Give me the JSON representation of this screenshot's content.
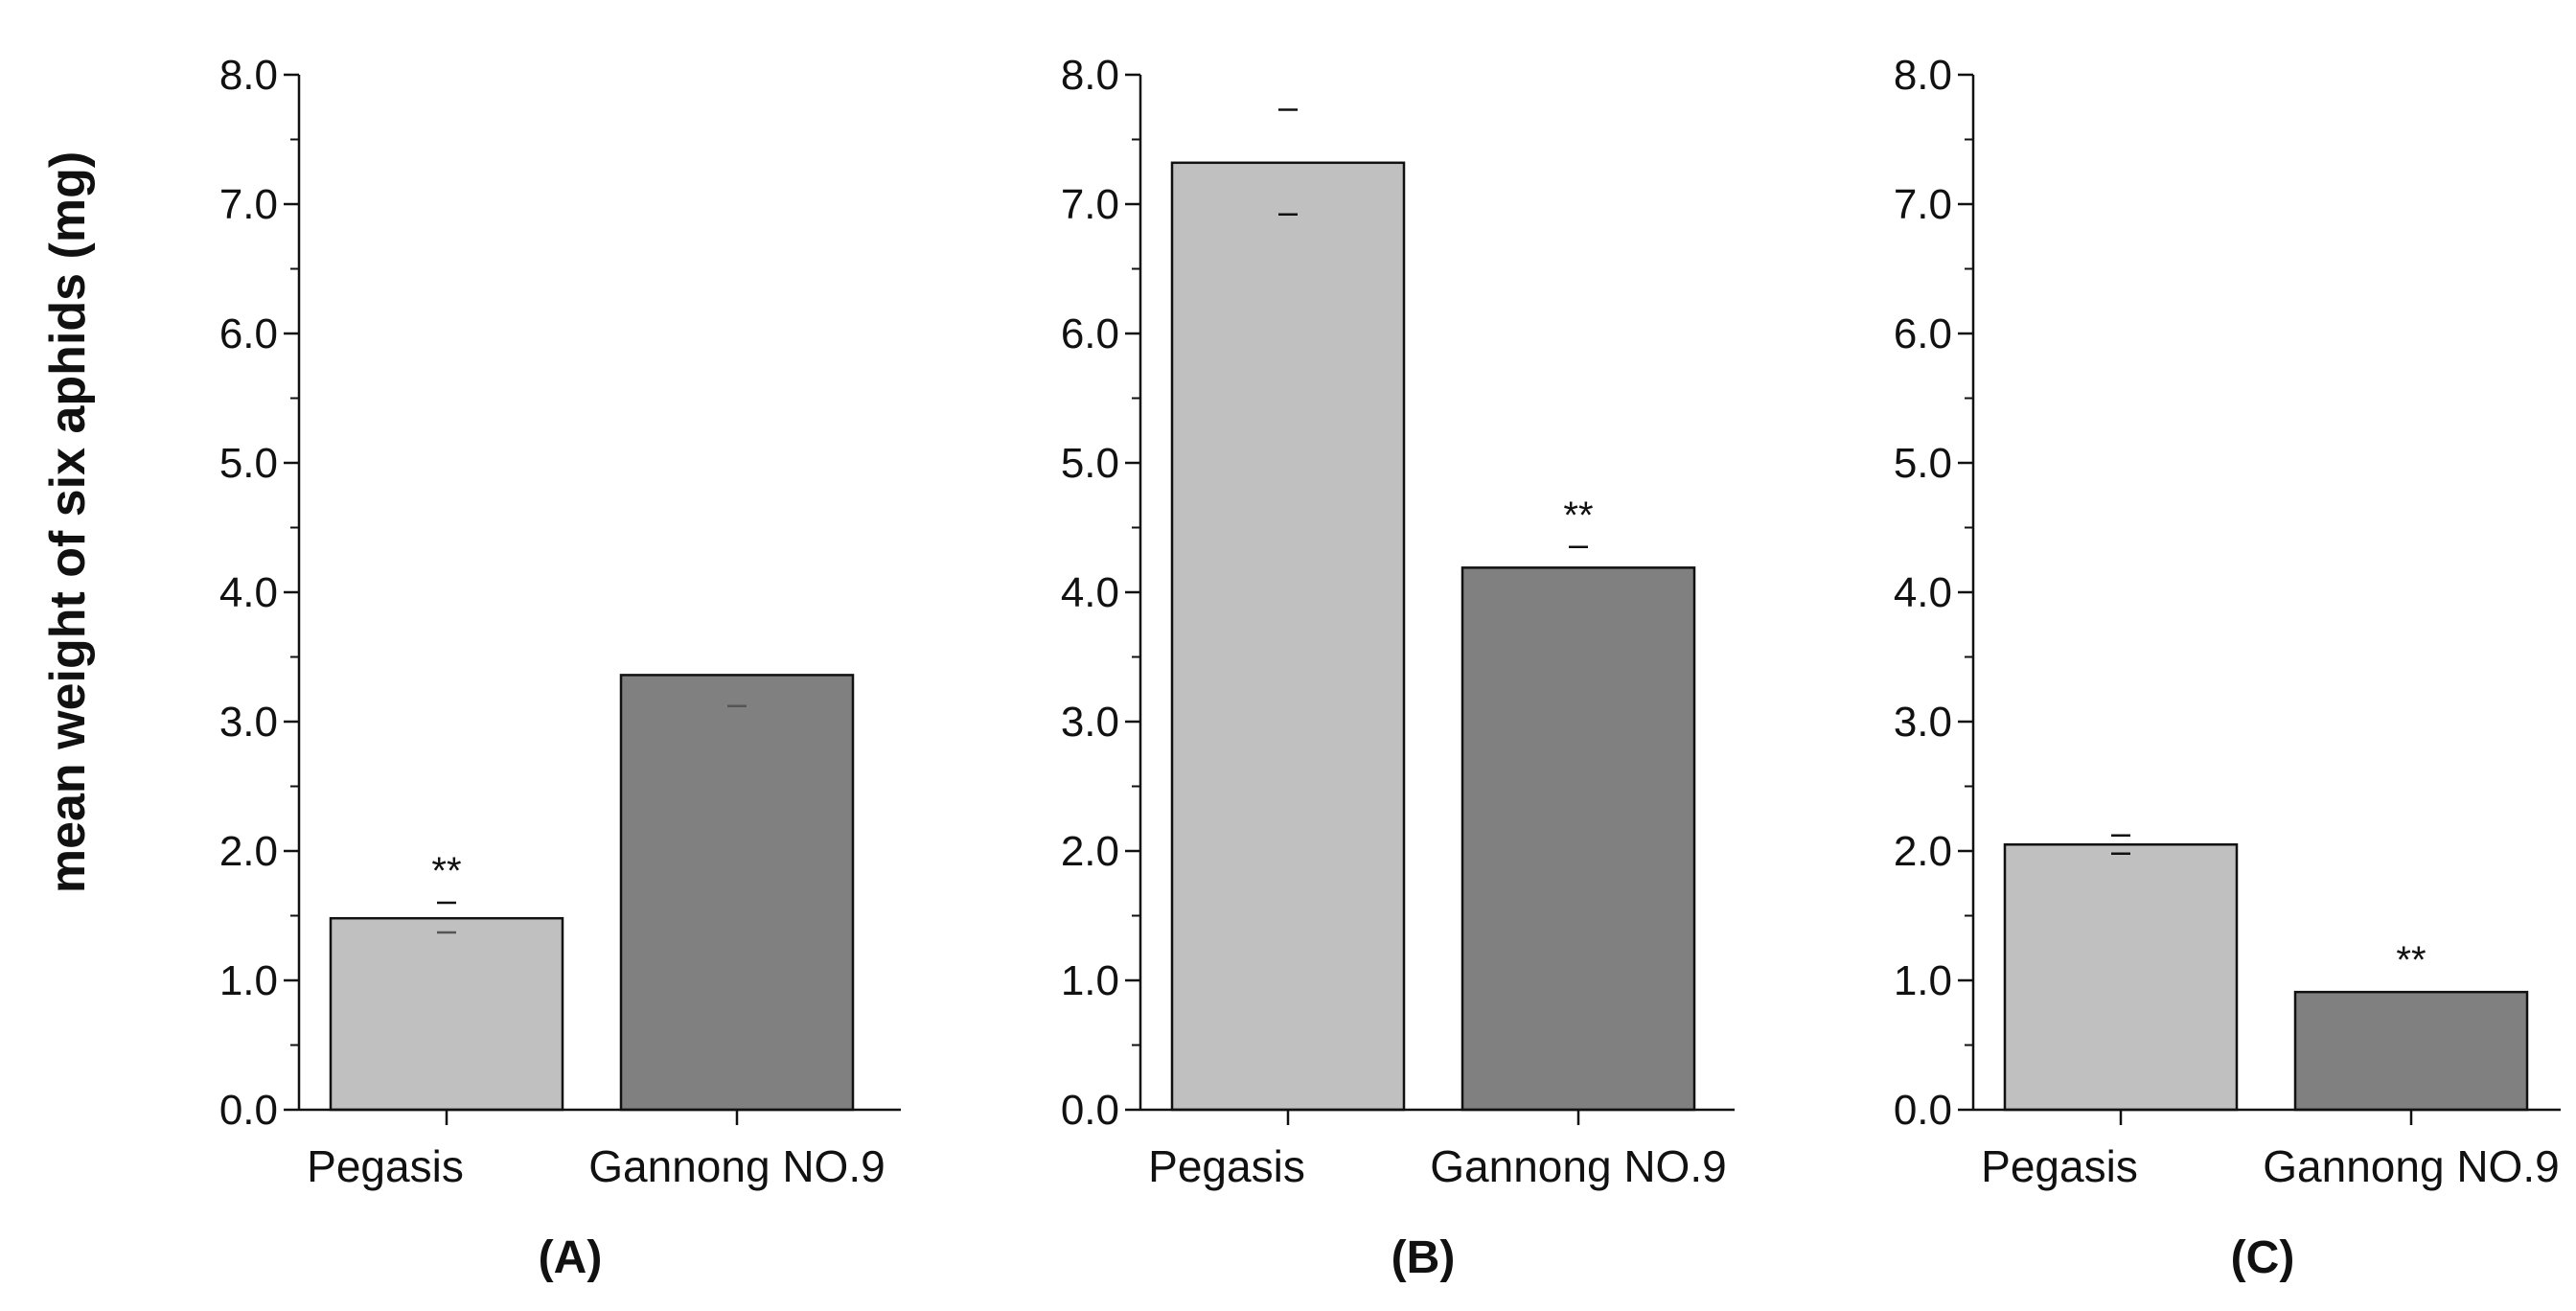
{
  "figure": {
    "ylabel": "mean weight of six aphids (mg)",
    "colors": {
      "Pegasis": "#c0c0c0",
      "Gannong NO.9": "#808080",
      "axis": "#111111"
    }
  },
  "chart_data": [
    {
      "type": "bar",
      "panel": "(A)",
      "categories": [
        "Pegasis",
        "Gannong NO.9"
      ],
      "values": [
        1.48,
        3.36
      ],
      "error_low": [
        1.37,
        3.12
      ],
      "error_high": [
        1.6,
        3.36
      ],
      "significance": [
        "**",
        ""
      ],
      "ylabel": "mean weight of six aphids (mg)",
      "ylim": [
        0,
        8
      ],
      "yticks": [
        "0.0",
        "1.0",
        "2.0",
        "3.0",
        "4.0",
        "5.0",
        "6.0",
        "7.0",
        "8.0"
      ]
    },
    {
      "type": "bar",
      "panel": "(B)",
      "categories": [
        "Pegasis",
        "Gannong NO.9"
      ],
      "values": [
        7.32,
        4.19
      ],
      "error_low": [
        6.92,
        4.19
      ],
      "error_high": [
        7.73,
        4.35
      ],
      "significance": [
        "",
        "**"
      ],
      "ylim": [
        0,
        8
      ],
      "yticks": [
        "0.0",
        "1.0",
        "2.0",
        "3.0",
        "4.0",
        "5.0",
        "6.0",
        "7.0",
        "8.0"
      ]
    },
    {
      "type": "bar",
      "panel": "(C)",
      "categories": [
        "Pegasis",
        "Gannong NO.9"
      ],
      "values": [
        2.05,
        0.91
      ],
      "error_low": [
        1.98,
        0.91
      ],
      "error_high": [
        2.12,
        0.91
      ],
      "significance": [
        "",
        "**"
      ],
      "ylim": [
        0,
        8
      ],
      "yticks": [
        "0.0",
        "1.0",
        "2.0",
        "3.0",
        "4.0",
        "5.0",
        "6.0",
        "7.0",
        "8.0"
      ]
    }
  ]
}
